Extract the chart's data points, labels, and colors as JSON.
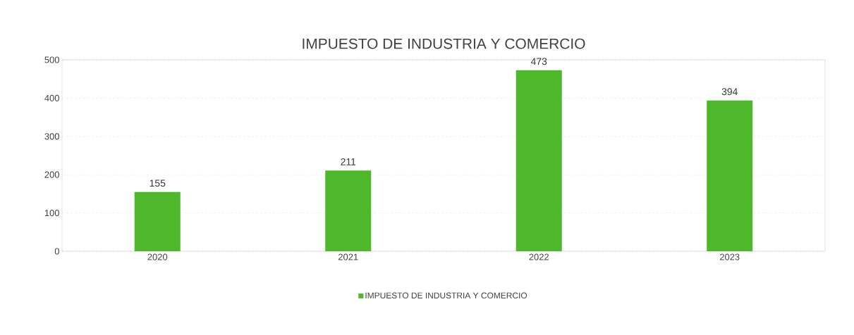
{
  "chart_data": {
    "type": "bar",
    "title": "IMPUESTO DE INDUSTRIA Y COMERCIO",
    "categories": [
      "2020",
      "2021",
      "2022",
      "2023"
    ],
    "series": [
      {
        "name": "IMPUESTO DE INDUSTRIA Y COMERCIO",
        "color": "#4cb82a",
        "values": [
          155,
          211,
          473,
          394
        ]
      }
    ],
    "ylim": [
      0,
      500
    ],
    "yticks": [
      0,
      100,
      200,
      300,
      400,
      500
    ],
    "grid": "y",
    "legend": "bottom",
    "data_labels": true
  }
}
